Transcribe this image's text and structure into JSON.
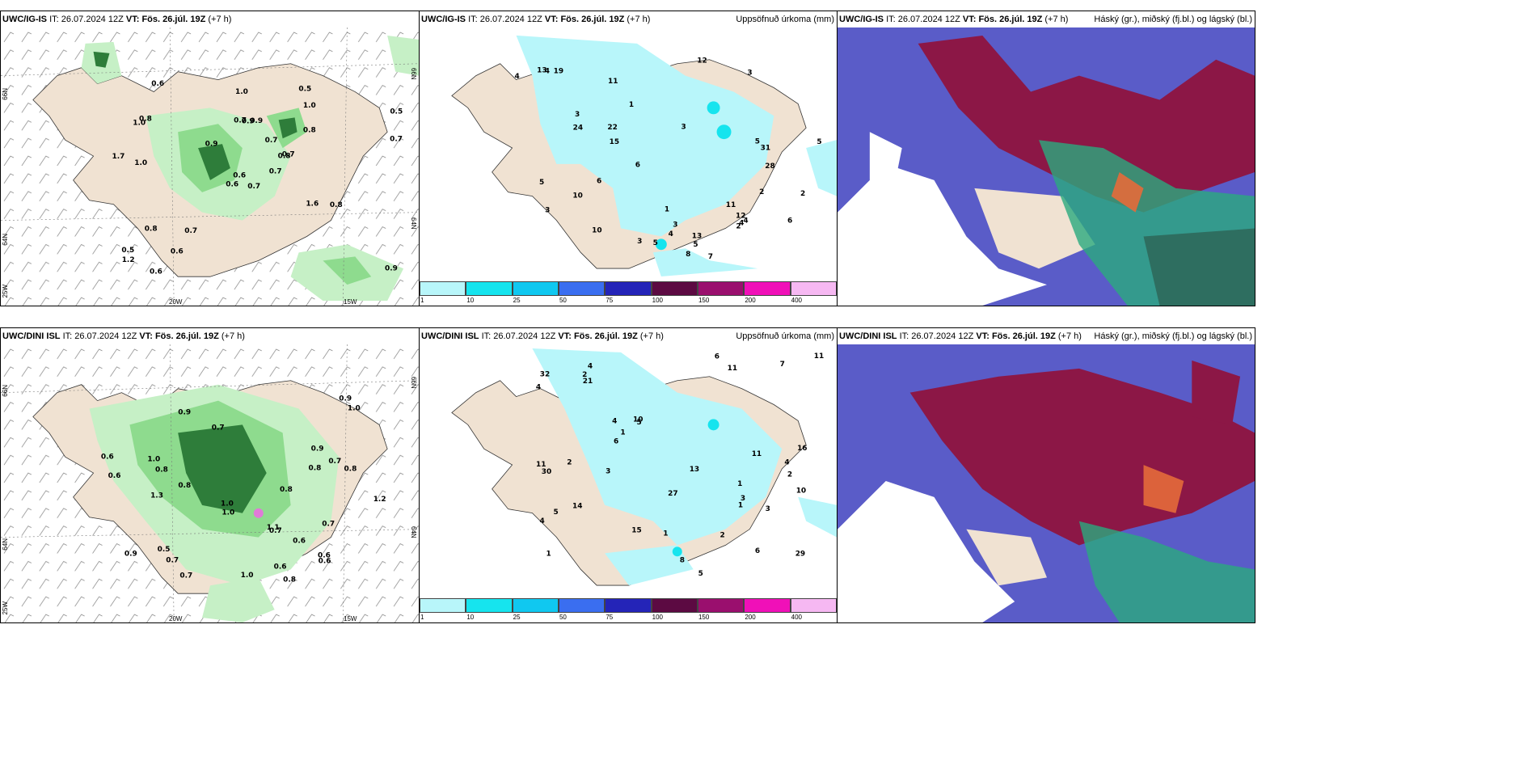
{
  "panels": {
    "top_left": {
      "model": "UWC/IG-IS",
      "it_label": "IT:",
      "it": "26.07.2024 12Z",
      "vt_label": "VT:",
      "vt": "Fös. 26.júl. 19Z",
      "lead": "(+7 h)",
      "right": ""
    },
    "top_mid": {
      "model": "UWC/IG-IS",
      "it_label": "IT:",
      "it": "26.07.2024 12Z",
      "vt_label": "VT:",
      "vt": "Fös. 26.júl. 19Z",
      "lead": "(+7 h)",
      "right": "Uppsöfnuð úrkoma (mm)"
    },
    "top_right": {
      "model": "UWC/IG-IS",
      "it_label": "IT:",
      "it": "26.07.2024 12Z",
      "vt_label": "VT:",
      "vt": "Fös. 26.júl. 19Z",
      "lead": "(+7 h)",
      "right": "Háský (gr.), miðský (fj.bl.) og lágský (bl.)"
    },
    "bot_left": {
      "model": "UWC/DINI ISL",
      "it_label": "IT:",
      "it": "26.07.2024 12Z",
      "vt_label": "VT:",
      "vt": "Fös. 26.júl. 19Z",
      "lead": "(+7 h)",
      "right": ""
    },
    "bot_mid": {
      "model": "UWC/DINI ISL",
      "it_label": "IT:",
      "it": "26.07.2024 12Z",
      "vt_label": "VT:",
      "vt": "Fös. 26.júl. 19Z",
      "lead": "(+7 h)",
      "right": "Uppsöfnuð úrkoma (mm)"
    },
    "bot_right": {
      "model": "UWC/DINI ISL",
      "it_label": "IT:",
      "it": "26.07.2024 12Z",
      "vt_label": "VT:",
      "vt": "Fös. 26.júl. 19Z",
      "lead": "(+7 h)",
      "right": "Háský (gr.), miðský (fj.bl.) og lágský (bl.)"
    }
  },
  "grid_labels": {
    "lat66": "66N",
    "lat64": "64N",
    "lon25": "25W",
    "lon20": "20W",
    "lon15": "15W",
    "lat66r": "66N",
    "lat64r": "64N"
  },
  "colorbar": {
    "ticks": [
      "1",
      "10",
      "25",
      "50",
      "75",
      "100",
      "150",
      "200",
      "400"
    ],
    "colors": [
      "#b8f6fa",
      "#16e4ee",
      "#10c8f0",
      "#3a6ef0",
      "#2424b8",
      "#5c0a42",
      "#9a0f6e",
      "#f010b8",
      "#f6b8f2"
    ]
  },
  "colors": {
    "land": "#f0e2d2",
    "precip_light": "#c6f0c6",
    "precip_mid": "#8edb8e",
    "precip_dark": "#2e7d3a",
    "accum": "#b8f6fa",
    "cloud_low": "#5a5cc8",
    "cloud_high": "#8c1746",
    "cloud_mid": "#2aaa7e"
  },
  "top_left_values": [
    "0.7",
    "1.0",
    "0.6",
    "0.5",
    "0.8",
    "0.7",
    "0.5",
    "0.9",
    "1.0",
    "0.7",
    "0.6",
    "0.9",
    "1.0",
    "0.5",
    "0.6",
    "0.8",
    "0.6",
    "0.7",
    "0.7",
    "0.8",
    "0.9",
    "1.2",
    "0.6",
    "0.9",
    "0.7",
    "0.8",
    "0.8",
    "1.0",
    "1.7",
    "1.6",
    "0.7"
  ],
  "bot_left_values": [
    "0.8",
    "0.9",
    "0.5",
    "1.0",
    "0.7",
    "0.6",
    "1.2",
    "0.8",
    "1.0",
    "0.7",
    "0.9",
    "0.6",
    "1.0",
    "1.1",
    "0.8",
    "0.9",
    "0.6",
    "1.0",
    "0.7",
    "0.8",
    "0.6",
    "0.7",
    "0.7",
    "0.6",
    "0.8",
    "0.9",
    "1.3",
    "0.8",
    "1.0",
    "0.7",
    "0.6"
  ],
  "top_mid_values": [
    "3",
    "3",
    "3",
    "4",
    "5",
    "3",
    "4",
    "5",
    "5",
    "3",
    "10",
    "6",
    "5",
    "7",
    "3",
    "5",
    "12",
    "4",
    "2",
    "31",
    "19",
    "28",
    "24",
    "15",
    "13",
    "10",
    "12",
    "8",
    "11",
    "22",
    "13",
    "11",
    "2",
    "1",
    "2",
    "1",
    "4",
    "4",
    "6",
    "6"
  ],
  "bot_mid_values": [
    "1",
    "2",
    "1",
    "4",
    "5",
    "6",
    "4",
    "11",
    "4",
    "5",
    "4",
    "11",
    "32",
    "29",
    "15",
    "16",
    "27",
    "13",
    "10",
    "14",
    "11",
    "7",
    "6",
    "10",
    "6",
    "2",
    "3",
    "30",
    "21",
    "11",
    "8",
    "2",
    "1",
    "3",
    "4",
    "3",
    "1",
    "2",
    "1",
    "5"
  ]
}
